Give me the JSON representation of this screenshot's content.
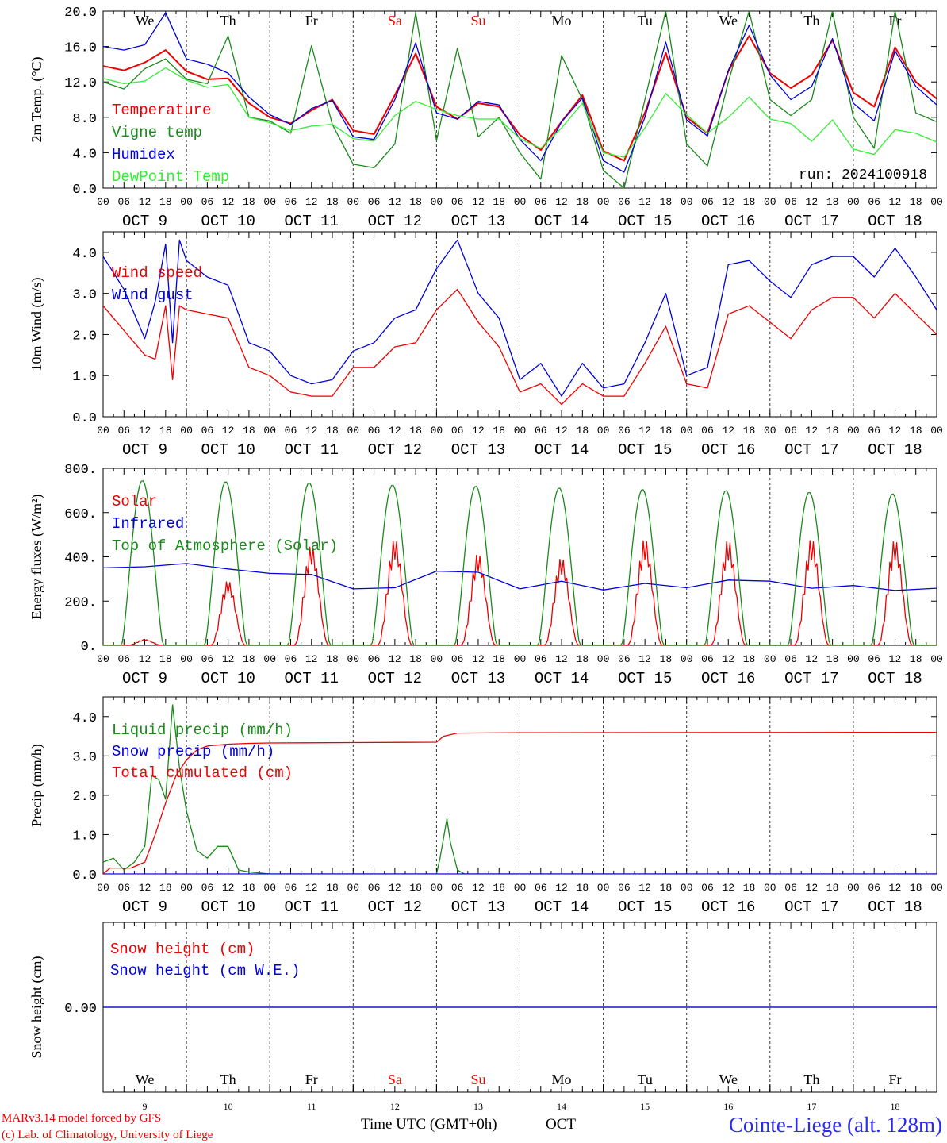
{
  "run_label": "run: 2024100918",
  "footer": {
    "model": "MARv3.14 model forced by GFS",
    "copyright": "(c) Lab. of Climatology, University of Liege",
    "xaxis_title": "Time UTC (GMT+0h)",
    "month": "OCT",
    "station": "Cointe-Liege (alt. 128m)"
  },
  "days": [
    {
      "abbr": "We",
      "date": "OCT  9",
      "num": "9",
      "weekend": false
    },
    {
      "abbr": "Th",
      "date": "OCT 10",
      "num": "10",
      "weekend": false
    },
    {
      "abbr": "Fr",
      "date": "OCT 11",
      "num": "11",
      "weekend": false
    },
    {
      "abbr": "Sa",
      "date": "OCT 12",
      "num": "12",
      "weekend": true
    },
    {
      "abbr": "Su",
      "date": "OCT 13",
      "num": "13",
      "weekend": true
    },
    {
      "abbr": "Mo",
      "date": "OCT 14",
      "num": "14",
      "weekend": false
    },
    {
      "abbr": "Tu",
      "date": "OCT 15",
      "num": "15",
      "weekend": false
    },
    {
      "abbr": "We",
      "date": "OCT 16",
      "num": "16",
      "weekend": false
    },
    {
      "abbr": "Th",
      "date": "OCT 17",
      "num": "17",
      "weekend": false
    },
    {
      "abbr": "Fr",
      "date": "OCT 18",
      "num": "18",
      "weekend": false
    }
  ],
  "hour_ticks": [
    "00",
    "06",
    "12",
    "18"
  ],
  "colors": {
    "red": "#ee0000",
    "green": "#1a8a1a",
    "blue": "#0000dd",
    "lightgreen": "#33ee33",
    "purple": "#7a2a9a",
    "weekend": "#ee0000"
  },
  "chart_data": [
    {
      "type": "line",
      "ylabel": "2m Temp. (°C)",
      "ylim": [
        0,
        20
      ],
      "yticks": [
        "0.0",
        "4.0",
        "8.0",
        "12.0",
        "16.0",
        "20.0"
      ],
      "x_unit": "hours since 2024-10-09 00 UTC",
      "series": [
        {
          "name": "Temperature",
          "color": "#ee0000",
          "x": [
            0,
            6,
            12,
            18,
            24,
            30,
            36,
            42,
            48,
            54,
            60,
            66,
            72,
            78,
            84,
            90,
            96,
            102,
            108,
            114,
            120,
            126,
            132,
            138,
            144,
            150,
            156,
            162,
            168,
            174,
            180,
            186,
            192,
            198,
            204,
            210,
            216,
            222,
            228,
            234,
            240
          ],
          "values": [
            13.8,
            13.3,
            14.2,
            15.6,
            13.2,
            12.3,
            12.4,
            9.6,
            8.0,
            7.3,
            8.8,
            10.0,
            6.5,
            6.1,
            10.5,
            15.2,
            9.2,
            7.8,
            9.6,
            9.2,
            6.0,
            4.3,
            7.5,
            10.5,
            4.2,
            3.1,
            8.5,
            15.3,
            8.0,
            6.2,
            13.2,
            17.2,
            13.0,
            11.3,
            12.8,
            16.7,
            10.8,
            9.2,
            15.9,
            12.0,
            10.1
          ]
        },
        {
          "name": "Vigne temp",
          "color": "#1a8a1a",
          "x": [
            0,
            6,
            12,
            18,
            24,
            30,
            36,
            42,
            48,
            54,
            60,
            66,
            72,
            78,
            84,
            90,
            96,
            102,
            108,
            114,
            120,
            126,
            132,
            138,
            144,
            150,
            156,
            162,
            168,
            174,
            180,
            186,
            192,
            198,
            204,
            210,
            216,
            222,
            228,
            234,
            240
          ],
          "values": [
            12.0,
            11.2,
            13.5,
            14.6,
            12.3,
            11.8,
            17.2,
            8.0,
            7.6,
            6.2,
            16.1,
            7.2,
            2.7,
            2.3,
            5.0,
            19.8,
            5.4,
            15.8,
            5.8,
            8.0,
            4.0,
            1.0,
            15.0,
            10.0,
            2.0,
            0.0,
            10.0,
            20.0,
            5.0,
            2.5,
            12.0,
            20.0,
            10.0,
            8.2,
            10.0,
            20.0,
            8.0,
            4.5,
            20.0,
            8.5,
            7.5
          ]
        },
        {
          "name": "Humidex",
          "color": "#0000dd",
          "x": [
            0,
            6,
            12,
            18,
            24,
            30,
            36,
            42,
            48,
            54,
            60,
            66,
            72,
            78,
            84,
            90,
            96,
            102,
            108,
            114,
            120,
            126,
            132,
            138,
            144,
            150,
            156,
            162,
            168,
            174,
            180,
            186,
            192,
            198,
            204,
            210,
            216,
            222,
            228,
            234,
            240
          ],
          "values": [
            16.0,
            15.6,
            16.2,
            19.8,
            14.6,
            14.0,
            13.0,
            10.3,
            8.3,
            7.2,
            9.0,
            9.9,
            5.8,
            5.5,
            10.0,
            16.4,
            8.5,
            7.8,
            9.8,
            9.4,
            5.5,
            3.1,
            7.5,
            10.2,
            3.1,
            1.8,
            8.0,
            16.5,
            7.7,
            5.9,
            13.3,
            18.4,
            12.8,
            10.0,
            11.5,
            16.9,
            9.6,
            7.6,
            15.5,
            11.5,
            9.4
          ]
        },
        {
          "name": "DewPoint Temp",
          "color": "#33ee33",
          "x": [
            0,
            6,
            12,
            18,
            24,
            30,
            36,
            42,
            48,
            54,
            60,
            66,
            72,
            78,
            84,
            90,
            96,
            102,
            108,
            114,
            120,
            126,
            132,
            138,
            144,
            150,
            156,
            162,
            168,
            174,
            180,
            186,
            192,
            198,
            204,
            210,
            216,
            222,
            228,
            234,
            240
          ],
          "values": [
            12.4,
            11.8,
            12.1,
            13.6,
            12.2,
            11.4,
            11.7,
            8.0,
            7.4,
            6.5,
            7.0,
            7.2,
            5.6,
            5.3,
            8.2,
            9.8,
            8.9,
            8.2,
            7.8,
            7.8,
            5.6,
            4.5,
            6.8,
            9.6,
            4.0,
            3.5,
            6.8,
            10.7,
            8.3,
            6.2,
            8.0,
            10.3,
            7.8,
            7.3,
            5.3,
            7.7,
            4.4,
            3.8,
            6.6,
            6.2,
            5.2
          ]
        }
      ]
    },
    {
      "type": "line",
      "ylabel": "10m Wind (m/s)",
      "ylim": [
        0,
        4.5
      ],
      "yticks": [
        "0.0",
        "1.0",
        "2.0",
        "3.0",
        "4.0"
      ],
      "x_unit": "hours since 2024-10-09 00 UTC",
      "series": [
        {
          "name": "Wind speed",
          "color": "#ee0000",
          "x": [
            0,
            6,
            12,
            15,
            18,
            20,
            22,
            24,
            30,
            36,
            42,
            48,
            54,
            60,
            66,
            72,
            78,
            84,
            90,
            96,
            102,
            108,
            114,
            120,
            126,
            132,
            138,
            144,
            150,
            156,
            162,
            168,
            174,
            180,
            186,
            192,
            198,
            204,
            210,
            216,
            222,
            228,
            234,
            240
          ],
          "values": [
            2.7,
            2.1,
            1.5,
            1.4,
            2.7,
            0.9,
            2.7,
            2.6,
            2.5,
            2.4,
            1.2,
            1.0,
            0.6,
            0.5,
            0.5,
            1.2,
            1.2,
            1.7,
            1.8,
            2.6,
            3.1,
            2.3,
            1.7,
            0.6,
            0.8,
            0.3,
            0.8,
            0.5,
            0.5,
            1.3,
            2.2,
            0.8,
            0.7,
            2.5,
            2.7,
            2.3,
            1.9,
            2.6,
            2.9,
            2.9,
            2.4,
            3.0,
            2.5,
            2.0
          ]
        },
        {
          "name": "Wind gust",
          "color": "#0000dd",
          "x": [
            0,
            6,
            12,
            15,
            18,
            20,
            22,
            24,
            30,
            36,
            42,
            48,
            54,
            60,
            66,
            72,
            78,
            84,
            90,
            96,
            102,
            108,
            114,
            120,
            126,
            132,
            138,
            144,
            150,
            156,
            162,
            168,
            174,
            180,
            186,
            192,
            198,
            204,
            210,
            216,
            222,
            228,
            234,
            240
          ],
          "values": [
            3.9,
            3.1,
            1.9,
            2.8,
            4.2,
            1.8,
            4.3,
            3.8,
            3.4,
            3.2,
            1.8,
            1.6,
            1.0,
            0.8,
            0.9,
            1.6,
            1.8,
            2.4,
            2.6,
            3.6,
            4.3,
            3.0,
            2.4,
            0.9,
            1.3,
            0.5,
            1.3,
            0.7,
            0.8,
            1.8,
            3.0,
            1.0,
            1.2,
            3.7,
            3.8,
            3.3,
            2.9,
            3.7,
            3.9,
            3.9,
            3.4,
            4.1,
            3.4,
            2.6
          ]
        }
      ]
    },
    {
      "type": "line",
      "ylabel": "Energy fluxes (W/m²)",
      "ylim": [
        0,
        800
      ],
      "yticks": [
        "0.",
        "200.",
        "400.",
        "600.",
        "800."
      ],
      "x_unit": "hours since 2024-10-09 00 UTC",
      "solar_peaks": [
        28,
        310,
        480,
        510,
        440,
        420,
        510,
        505,
        510,
        505
      ],
      "toa_peaks": [
        745,
        740,
        735,
        725,
        720,
        712,
        705,
        700,
        692,
        685
      ],
      "series": [
        {
          "name": "Solar",
          "color": "#ee0000",
          "peaks_by_day": [
            28,
            310,
            480,
            510,
            440,
            420,
            510,
            505,
            510,
            505
          ]
        },
        {
          "name": "Infrared",
          "color": "#0000dd",
          "x": [
            0,
            12,
            24,
            36,
            48,
            60,
            72,
            84,
            96,
            108,
            120,
            132,
            144,
            156,
            168,
            180,
            192,
            204,
            216,
            228,
            240
          ],
          "values": [
            350,
            355,
            370,
            345,
            325,
            320,
            255,
            260,
            335,
            330,
            255,
            290,
            250,
            280,
            260,
            295,
            290,
            258,
            270,
            248,
            258
          ]
        },
        {
          "name": "Top of Atmosphere (Solar)",
          "color": "#1a8a1a",
          "peaks_by_day": [
            745,
            740,
            735,
            725,
            720,
            712,
            705,
            700,
            692,
            685
          ]
        }
      ]
    },
    {
      "type": "line",
      "ylabel": "Precip (mm/h)",
      "ylim": [
        0,
        4.5
      ],
      "yticks": [
        "0.0",
        "1.0",
        "2.0",
        "3.0",
        "4.0"
      ],
      "x_unit": "hours since 2024-10-09 00 UTC",
      "series": [
        {
          "name": "Liquid precip (mm/h)",
          "color": "#1a8a1a",
          "x": [
            0,
            3,
            6,
            9,
            12,
            14,
            16,
            18,
            20,
            22,
            24,
            27,
            30,
            33,
            36,
            39,
            42,
            48,
            96,
            97,
            99,
            100,
            102,
            104,
            120,
            240
          ],
          "values": [
            0.3,
            0.4,
            0.1,
            0.3,
            0.7,
            2.5,
            2.4,
            1.9,
            4.3,
            2.7,
            1.6,
            0.6,
            0.4,
            0.7,
            0.7,
            0.1,
            0.05,
            0.0,
            0.0,
            0.4,
            1.4,
            0.8,
            0.1,
            0.0,
            0.0,
            0.0
          ]
        },
        {
          "name": "Snow precip (mm/h)",
          "color": "#0000dd",
          "x": [
            0,
            240
          ],
          "values": [
            0,
            0
          ]
        },
        {
          "name": "Total cumulated (cm)",
          "color": "#ee0000",
          "x": [
            0,
            2,
            8,
            12,
            15,
            18,
            21,
            24,
            27,
            30,
            36,
            42,
            48,
            72,
            96,
            98,
            102,
            120,
            240
          ],
          "values": [
            0.0,
            0.15,
            0.15,
            0.3,
            1.0,
            1.8,
            2.5,
            2.9,
            3.15,
            3.25,
            3.3,
            3.32,
            3.33,
            3.34,
            3.35,
            3.5,
            3.58,
            3.59,
            3.6
          ]
        }
      ]
    },
    {
      "type": "line",
      "ylabel": "Snow height (cm)",
      "ylim": [
        -1,
        1
      ],
      "yticks": [
        "0.00"
      ],
      "x_unit": "hours since 2024-10-09 00 UTC",
      "series": [
        {
          "name": "Snow height (cm)",
          "color": "#ee0000",
          "x": [
            0,
            240
          ],
          "values": [
            0,
            0
          ]
        },
        {
          "name": "Snow height (cm W.E.)",
          "color": "#0000dd",
          "x": [
            0,
            240
          ],
          "values": [
            0,
            0
          ]
        }
      ]
    }
  ]
}
